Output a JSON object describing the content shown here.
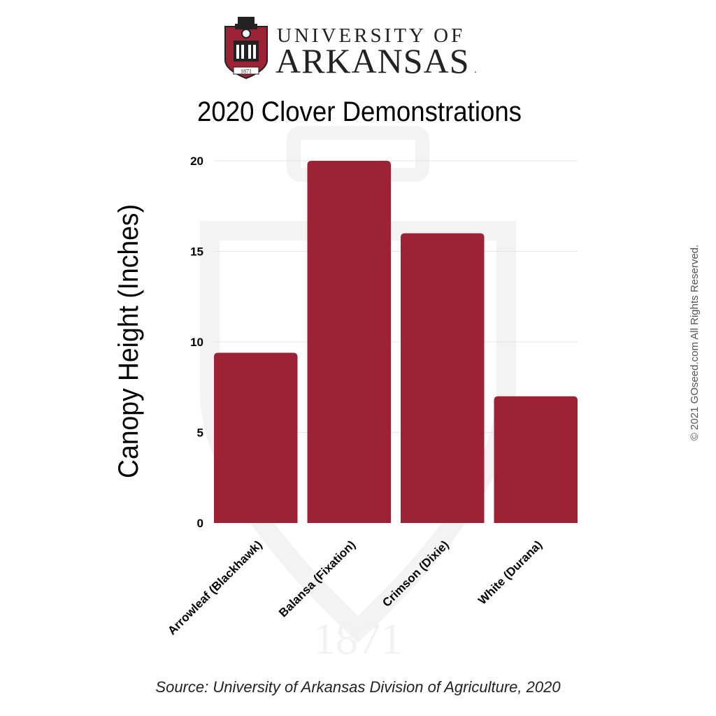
{
  "logo": {
    "line1": "UNIVERSITY OF",
    "line2": "ARKANSAS",
    "line2_mark": ".",
    "seal_year": "1871"
  },
  "watermark_year": "1871",
  "copyright": "© 2021 GOseed.com All Rights Reserved.",
  "source": "Source: University of Arkansas Division of Agriculture, 2020",
  "colors": {
    "bar": "#9b2335",
    "grid": "#e6e6e6",
    "text": "#000000",
    "watermark": "#f2f2f2"
  },
  "chart_data": {
    "type": "bar",
    "title": "2020 Clover Demonstrations",
    "xlabel": "",
    "ylabel": "Canopy Height (Inches)",
    "categories": [
      "Arrowleaf (Blackhawk)",
      "Balansa (Fixation)",
      "Crimson (Dixie)",
      "White (Durana)"
    ],
    "values": [
      9.4,
      20,
      16,
      7
    ],
    "ylim": [
      0,
      20
    ],
    "yticks": [
      0,
      5,
      10,
      15,
      20
    ],
    "grid": true,
    "legend": "none"
  }
}
